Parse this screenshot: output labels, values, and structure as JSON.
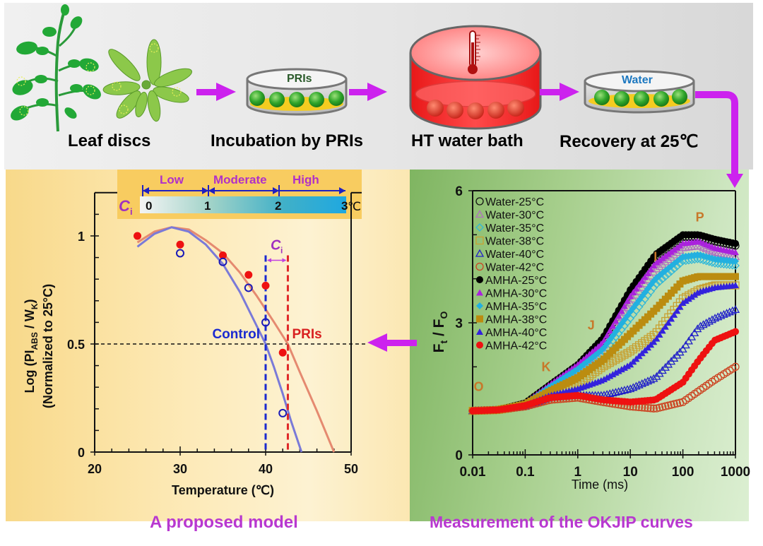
{
  "workflow": {
    "steps": [
      {
        "label": "Leaf discs",
        "color": "#111111"
      },
      {
        "label": "Incubation by PRIs",
        "color": "#1e9a2e"
      },
      {
        "label": "HT water bath",
        "color": "#b01818"
      },
      {
        "label": "Recovery at 25℃",
        "color": "#1a1acc"
      }
    ],
    "dish_labels": {
      "pri_dish": "PRIs",
      "water_dish": "Water"
    },
    "arrow_color": "#cc22ee"
  },
  "model_panel": {
    "caption": "A proposed model",
    "ci_scale": {
      "symbol": "C",
      "subscript": "i",
      "unit": "℃",
      "ticks": [
        "0",
        "1",
        "2",
        "3"
      ],
      "ranges": [
        "Low",
        "Moderate",
        "High"
      ]
    },
    "annotations": {
      "control": "Control",
      "pris": "PRIs",
      "ci": "C",
      "ci_sub": "i"
    }
  },
  "okjip_panel": {
    "caption": "Measurement of the OKJIP curves",
    "phase_labels": [
      "O",
      "K",
      "J",
      "I",
      "P"
    ]
  },
  "chart_data": [
    {
      "type": "scatter",
      "title": "",
      "xlabel": "Temperature (℃)",
      "ylabel_line1": "Log (PI",
      "ylabel_sub1": "ABS",
      "ylabel_mid": " / W",
      "ylabel_sub2": "K",
      "ylabel_end": ")",
      "ylabel_line2": "(Normalized  to 25°C)",
      "xlim": [
        20,
        50
      ],
      "ylim": [
        0,
        1.2
      ],
      "xticks": [
        "20",
        "30",
        "40",
        "50"
      ],
      "yticks": [
        "0",
        "0.5",
        "1"
      ],
      "reference_line_y": 0.5,
      "threshold_lines": {
        "control_x": 40,
        "pris_x": 42.6
      },
      "series": [
        {
          "name": "PRIs",
          "marker": "filled-circle",
          "color": "#ee1111",
          "x": [
            25,
            30,
            35,
            38,
            40,
            42
          ],
          "y": [
            1.0,
            0.96,
            0.91,
            0.82,
            0.77,
            0.46
          ],
          "fit_color": "#e58a70",
          "fit": {
            "x": [
              25,
              27,
              29,
              31,
              33,
              35,
              37,
              39,
              41,
              42.6,
              44,
              46,
              48
            ],
            "y": [
              0.97,
              1.02,
              1.04,
              1.03,
              0.98,
              0.92,
              0.83,
              0.72,
              0.6,
              0.5,
              0.37,
              0.19,
              0.0
            ]
          }
        },
        {
          "name": "Control",
          "marker": "open-circle",
          "color": "#1a1ab8",
          "x": [
            30,
            35,
            38,
            40,
            42
          ],
          "y": [
            0.92,
            0.88,
            0.76,
            0.6,
            0.18
          ],
          "fit_color": "#7a7ad8",
          "fit": {
            "x": [
              25,
              27,
              29,
              31,
              33,
              35,
              37,
              39,
              40,
              41,
              42,
              43,
              44.2
            ],
            "y": [
              0.95,
              1.01,
              1.04,
              1.02,
              0.96,
              0.87,
              0.74,
              0.58,
              0.5,
              0.39,
              0.27,
              0.14,
              0.0
            ]
          }
        }
      ]
    },
    {
      "type": "scatter",
      "title": "",
      "xlabel": "Time (ms)",
      "ylabel": "Ft / FO",
      "x_scale": "log",
      "xlim": [
        0.01,
        1000
      ],
      "ylim": [
        0,
        6
      ],
      "xticks": [
        "0.01",
        "0.1",
        "1",
        "10",
        "100",
        "1000"
      ],
      "yticks": [
        "0",
        "3",
        "6"
      ],
      "legend_position": "top-left",
      "series": [
        {
          "name": "Water-25°C",
          "marker": "open-circle",
          "color": "#111111",
          "x": [
            0.01,
            0.03,
            0.1,
            0.3,
            1,
            3,
            10,
            30,
            100,
            200,
            400,
            1000
          ],
          "y": [
            1.0,
            1.02,
            1.15,
            1.55,
            2.0,
            2.6,
            3.7,
            4.5,
            4.95,
            4.95,
            4.85,
            4.75
          ]
        },
        {
          "name": "Water-30°C",
          "marker": "open-triangle",
          "color": "#b070c0",
          "x": [
            0.01,
            0.03,
            0.1,
            0.3,
            1,
            3,
            10,
            30,
            100,
            200,
            400,
            1000
          ],
          "y": [
            1.0,
            1.02,
            1.15,
            1.5,
            1.95,
            2.45,
            3.45,
            4.2,
            4.7,
            4.75,
            4.6,
            4.5
          ]
        },
        {
          "name": "Water-35°C",
          "marker": "open-diamond",
          "color": "#30b8d8",
          "x": [
            0.01,
            0.03,
            0.1,
            0.3,
            1,
            3,
            10,
            30,
            100,
            200,
            400,
            1000
          ],
          "y": [
            1.0,
            1.02,
            1.12,
            1.45,
            1.85,
            2.3,
            3.1,
            3.85,
            4.4,
            4.45,
            4.35,
            4.3
          ]
        },
        {
          "name": "Water-38°C",
          "marker": "open-square",
          "color": "#c8a030",
          "x": [
            0.01,
            0.03,
            0.1,
            0.3,
            1,
            3,
            10,
            30,
            100,
            200,
            400,
            1000
          ],
          "y": [
            1.0,
            1.02,
            1.12,
            1.35,
            1.6,
            2.0,
            2.35,
            2.75,
            3.55,
            3.75,
            3.85,
            3.85
          ]
        },
        {
          "name": "Water-40°C",
          "marker": "open-triangle",
          "color": "#2222c8",
          "x": [
            0.01,
            0.03,
            0.1,
            0.3,
            1,
            3,
            10,
            30,
            100,
            200,
            400,
            1000
          ],
          "y": [
            1.0,
            1.02,
            1.1,
            1.3,
            1.35,
            1.35,
            1.5,
            1.75,
            2.4,
            2.9,
            3.1,
            3.3
          ]
        },
        {
          "name": "Water-42°C",
          "marker": "open-circle",
          "color": "#cc4422",
          "x": [
            0.01,
            0.03,
            0.1,
            0.3,
            1,
            3,
            10,
            30,
            100,
            200,
            400,
            1000
          ],
          "y": [
            1.0,
            1.02,
            1.1,
            1.25,
            1.3,
            1.2,
            1.1,
            1.05,
            1.2,
            1.45,
            1.7,
            2.0
          ]
        },
        {
          "name": "AMHA-25°C",
          "marker": "filled-circle",
          "color": "#000000",
          "x": [
            0.01,
            0.03,
            0.1,
            0.3,
            1,
            3,
            10,
            30,
            100,
            200,
            400,
            1000
          ],
          "y": [
            1.0,
            1.02,
            1.18,
            1.6,
            2.05,
            2.65,
            3.75,
            4.55,
            5.0,
            5.0,
            4.9,
            4.8
          ]
        },
        {
          "name": "AMHA-30°C",
          "marker": "filled-triangle",
          "color": "#aa22dd",
          "x": [
            0.01,
            0.03,
            0.1,
            0.3,
            1,
            3,
            10,
            30,
            100,
            200,
            400,
            1000
          ],
          "y": [
            1.0,
            1.02,
            1.18,
            1.6,
            2.05,
            2.55,
            3.6,
            4.35,
            4.8,
            4.85,
            4.7,
            4.6
          ]
        },
        {
          "name": "AMHA-35°C",
          "marker": "filled-diamond",
          "color": "#22b0e0",
          "x": [
            0.01,
            0.03,
            0.1,
            0.3,
            1,
            3,
            10,
            30,
            100,
            200,
            400,
            1000
          ],
          "y": [
            1.0,
            1.02,
            1.16,
            1.55,
            1.95,
            2.4,
            3.25,
            4.0,
            4.5,
            4.55,
            4.45,
            4.4
          ]
        },
        {
          "name": "AMHA-38°C",
          "marker": "filled-square",
          "color": "#bb8c10",
          "x": [
            0.01,
            0.03,
            0.1,
            0.3,
            1,
            3,
            10,
            30,
            100,
            200,
            400,
            1000
          ],
          "y": [
            1.0,
            1.02,
            1.15,
            1.45,
            1.75,
            2.15,
            2.75,
            3.3,
            3.95,
            4.05,
            4.05,
            4.05
          ]
        },
        {
          "name": "AMHA-40°C",
          "marker": "filled-triangle",
          "color": "#3322dd",
          "x": [
            0.01,
            0.03,
            0.1,
            0.3,
            1,
            3,
            10,
            30,
            100,
            200,
            400,
            1000
          ],
          "y": [
            1.0,
            1.02,
            1.12,
            1.35,
            1.5,
            1.7,
            2.05,
            2.6,
            3.45,
            3.7,
            3.8,
            3.85
          ]
        },
        {
          "name": "AMHA-42°C",
          "marker": "filled-circle",
          "color": "#ee1111",
          "x": [
            0.01,
            0.03,
            0.1,
            0.3,
            1,
            3,
            10,
            30,
            100,
            200,
            400,
            1000
          ],
          "y": [
            1.0,
            1.02,
            1.12,
            1.3,
            1.35,
            1.25,
            1.2,
            1.25,
            1.65,
            2.15,
            2.6,
            2.8
          ]
        }
      ]
    }
  ]
}
